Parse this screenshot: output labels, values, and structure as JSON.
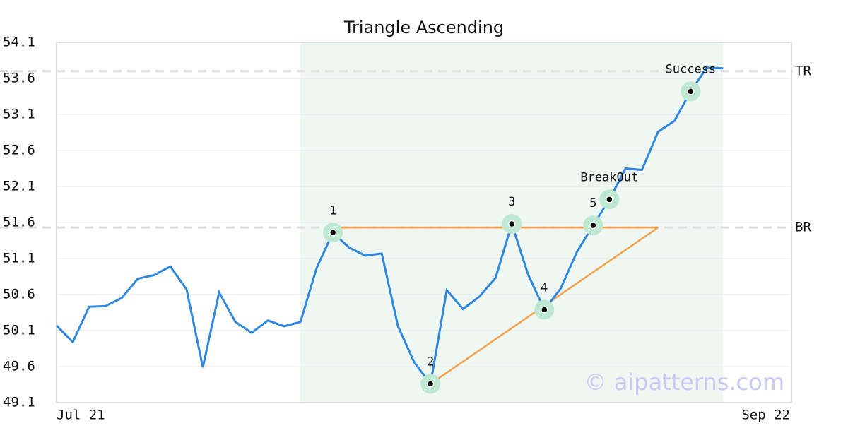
{
  "chart_data": {
    "type": "line",
    "title": "Triangle Ascending",
    "values": [
      50.17,
      49.94,
      50.43,
      50.44,
      50.55,
      50.82,
      50.87,
      50.99,
      50.67,
      49.59,
      50.63,
      50.22,
      50.07,
      50.24,
      50.16,
      50.22,
      50.97,
      51.46,
      51.25,
      51.14,
      51.17,
      50.16,
      49.66,
      49.36,
      50.66,
      50.4,
      50.57,
      50.83,
      51.58,
      50.88,
      50.39,
      50.68,
      51.19,
      51.56,
      51.92,
      52.35,
      52.33,
      52.86,
      53.01,
      53.42,
      53.75,
      53.74
    ],
    "color": "#2e86de",
    "xlim": [
      0,
      45.2
    ],
    "xticks": [
      {
        "value": 0,
        "label": "Jul 21"
      },
      {
        "value": 45.2,
        "label": "Sep 22"
      }
    ],
    "ylim": [
      49.1,
      54.1
    ],
    "yticks": [
      49.1,
      49.6,
      50.1,
      50.6,
      51.1,
      51.6,
      52.1,
      52.6,
      53.1,
      53.6,
      54.1
    ],
    "grid": true,
    "highlight_range": [
      15,
      41
    ],
    "highlight_color": "#eef7f2",
    "reference_lines": [
      {
        "label": "BR",
        "value": 51.53
      },
      {
        "label": "TR",
        "value": 53.7
      }
    ],
    "pattern_color": "#f5a04a",
    "pattern_lines": [
      {
        "x": [
          17,
          37
        ],
        "y": [
          51.53,
          51.53
        ]
      },
      {
        "x": [
          23,
          37
        ],
        "y": [
          49.36,
          51.53
        ]
      }
    ],
    "annotations": [
      {
        "label": "1",
        "x": 17,
        "y": 51.46
      },
      {
        "label": "2",
        "x": 23,
        "y": 49.36
      },
      {
        "label": "3",
        "x": 28,
        "y": 51.58
      },
      {
        "label": "4",
        "x": 30,
        "y": 50.39
      },
      {
        "label": "5",
        "x": 33,
        "y": 51.56
      },
      {
        "label": "BreakOut",
        "x": 34,
        "y": 51.92
      },
      {
        "label": "Success",
        "x": 39,
        "y": 53.42
      }
    ],
    "watermark": "© aipatterns.com"
  }
}
